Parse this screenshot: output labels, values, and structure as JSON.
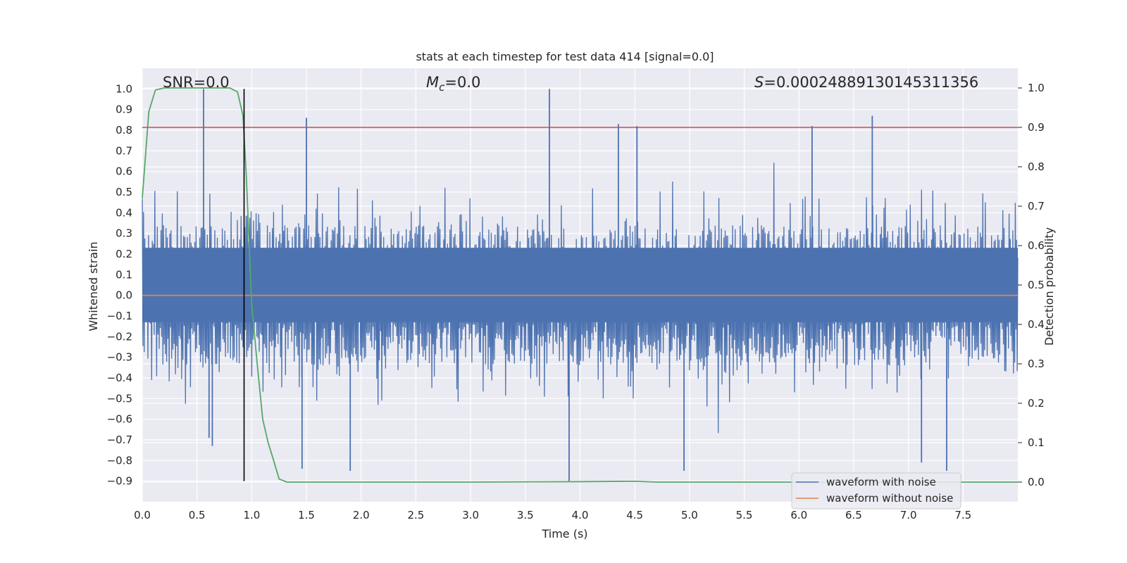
{
  "chart_data": {
    "type": "line",
    "title": "stats at each timestep for test data 414 [signal=0.0]",
    "xlabel": "Time (s)",
    "ylabel": "Whitened strain",
    "y2label": "Detection probability",
    "xlim": [
      0.0,
      8.0
    ],
    "ylim": [
      -1.0,
      1.1
    ],
    "y2lim": [
      -0.05,
      1.05
    ],
    "xticks": [
      "0.0",
      "0.5",
      "1.0",
      "1.5",
      "2.0",
      "2.5",
      "3.0",
      "3.5",
      "4.0",
      "4.5",
      "5.0",
      "5.5",
      "6.0",
      "6.5",
      "7.0",
      "7.5"
    ],
    "yticks": [
      "1.0",
      "0.9",
      "0.8",
      "0.7",
      "0.6",
      "0.5",
      "0.4",
      "0.3",
      "0.2",
      "0.1",
      "0.0",
      "−0.1",
      "−0.2",
      "−0.3",
      "−0.4",
      "−0.5",
      "−0.6",
      "−0.7",
      "−0.8",
      "−0.9"
    ],
    "y2ticks": [
      "1.0",
      "0.9",
      "0.8",
      "0.7",
      "0.6",
      "0.5",
      "0.4",
      "0.3",
      "0.2",
      "0.1",
      "0.0"
    ],
    "grid": true,
    "legend_position": "lower-right",
    "annotations": {
      "snr": "SNR=0.0",
      "mc_symbol": "M",
      "mc_sub": "c",
      "mc_value": "=0.0",
      "s_symbol": "S",
      "s_value": "=0.00024889130145311356"
    },
    "series": [
      {
        "name": "waveform with noise",
        "axis": "left",
        "color": "#4c72b0",
        "kind": "noise",
        "amplitude_envelope_typical": [
          -0.45,
          0.45
        ],
        "peaks": [
          {
            "x": 0.56,
            "y": 1.0
          },
          {
            "x": 0.61,
            "y": -0.69
          },
          {
            "x": 0.64,
            "y": -0.73
          },
          {
            "x": 1.5,
            "y": 0.86
          },
          {
            "x": 1.46,
            "y": -0.84
          },
          {
            "x": 1.9,
            "y": -0.85
          },
          {
            "x": 3.72,
            "y": 1.0
          },
          {
            "x": 3.9,
            "y": -0.9
          },
          {
            "x": 4.35,
            "y": 0.83
          },
          {
            "x": 4.52,
            "y": 0.82
          },
          {
            "x": 4.95,
            "y": -0.85
          },
          {
            "x": 6.12,
            "y": 0.82
          },
          {
            "x": 6.67,
            "y": 0.87
          },
          {
            "x": 7.12,
            "y": -0.81
          },
          {
            "x": 7.35,
            "y": -0.85
          }
        ]
      },
      {
        "name": "waveform without noise",
        "axis": "left",
        "color": "#dd8452",
        "x": [
          0.0,
          8.0
        ],
        "y": [
          0.0,
          0.0
        ]
      },
      {
        "axis": "right",
        "color": "#55a868",
        "x": [
          0.0,
          0.06,
          0.12,
          0.2,
          0.3,
          0.5,
          0.7,
          0.8,
          0.87,
          0.92,
          0.95,
          1.0,
          1.05,
          1.1,
          1.15,
          1.2,
          1.25,
          1.32,
          1.5,
          2.0,
          3.0,
          4.0,
          4.5,
          4.7,
          5.0,
          6.0,
          7.0,
          8.0
        ],
        "y": [
          0.72,
          0.94,
          0.995,
          1.0,
          1.0,
          1.0,
          1.0,
          1.0,
          0.99,
          0.93,
          0.78,
          0.45,
          0.3,
          0.16,
          0.1,
          0.055,
          0.008,
          0.0,
          0.0,
          0.0,
          0.0,
          0.001,
          0.002,
          0.0,
          0.0,
          0.0,
          0.0,
          0.0
        ]
      }
    ],
    "hlines": [
      {
        "axis": "right",
        "y": 0.9,
        "color": "#c44e52"
      }
    ],
    "vlines": [
      {
        "x": 0.93,
        "ymin": -0.9,
        "ymax": 1.0,
        "color": "#000000"
      }
    ]
  }
}
